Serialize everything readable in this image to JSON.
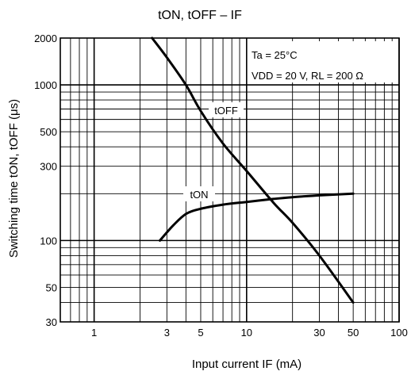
{
  "chart_data": {
    "type": "line",
    "title": "tON, tOFF – IF",
    "xlabel": "Input current   IF   (mA)",
    "ylabel": "Switching time   tON, tOFF   (μs)",
    "x_scale": "log",
    "y_scale": "log",
    "xlim": [
      0.6,
      100
    ],
    "ylim": [
      30,
      2000
    ],
    "x_ticks": [
      {
        "value": 1,
        "label": "1"
      },
      {
        "value": 3,
        "label": "3"
      },
      {
        "value": 5,
        "label": "5"
      },
      {
        "value": 10,
        "label": "10"
      },
      {
        "value": 30,
        "label": "30"
      },
      {
        "value": 50,
        "label": "50"
      },
      {
        "value": 100,
        "label": "100"
      }
    ],
    "y_ticks": [
      {
        "value": 30,
        "label": "30"
      },
      {
        "value": 50,
        "label": "50"
      },
      {
        "value": 100,
        "label": "100"
      },
      {
        "value": 300,
        "label": "300"
      },
      {
        "value": 500,
        "label": "500"
      },
      {
        "value": 1000,
        "label": "1000"
      },
      {
        "value": 2000,
        "label": "2000"
      }
    ],
    "grid": true,
    "annotations": [
      "Ta = 25°C",
      "VDD = 20 V, RL = 200 Ω"
    ],
    "series": [
      {
        "name": "tOFF",
        "x": [
          2.4,
          3,
          4,
          5,
          7,
          10,
          15,
          20,
          30,
          50
        ],
        "y": [
          2000,
          1500,
          1000,
          680,
          420,
          280,
          175,
          130,
          80,
          40
        ]
      },
      {
        "name": "tON",
        "x": [
          2.7,
          3.3,
          4,
          5,
          7,
          10,
          15,
          20,
          30,
          50
        ],
        "y": [
          100,
          125,
          148,
          160,
          170,
          177,
          185,
          190,
          195,
          200
        ]
      }
    ]
  }
}
